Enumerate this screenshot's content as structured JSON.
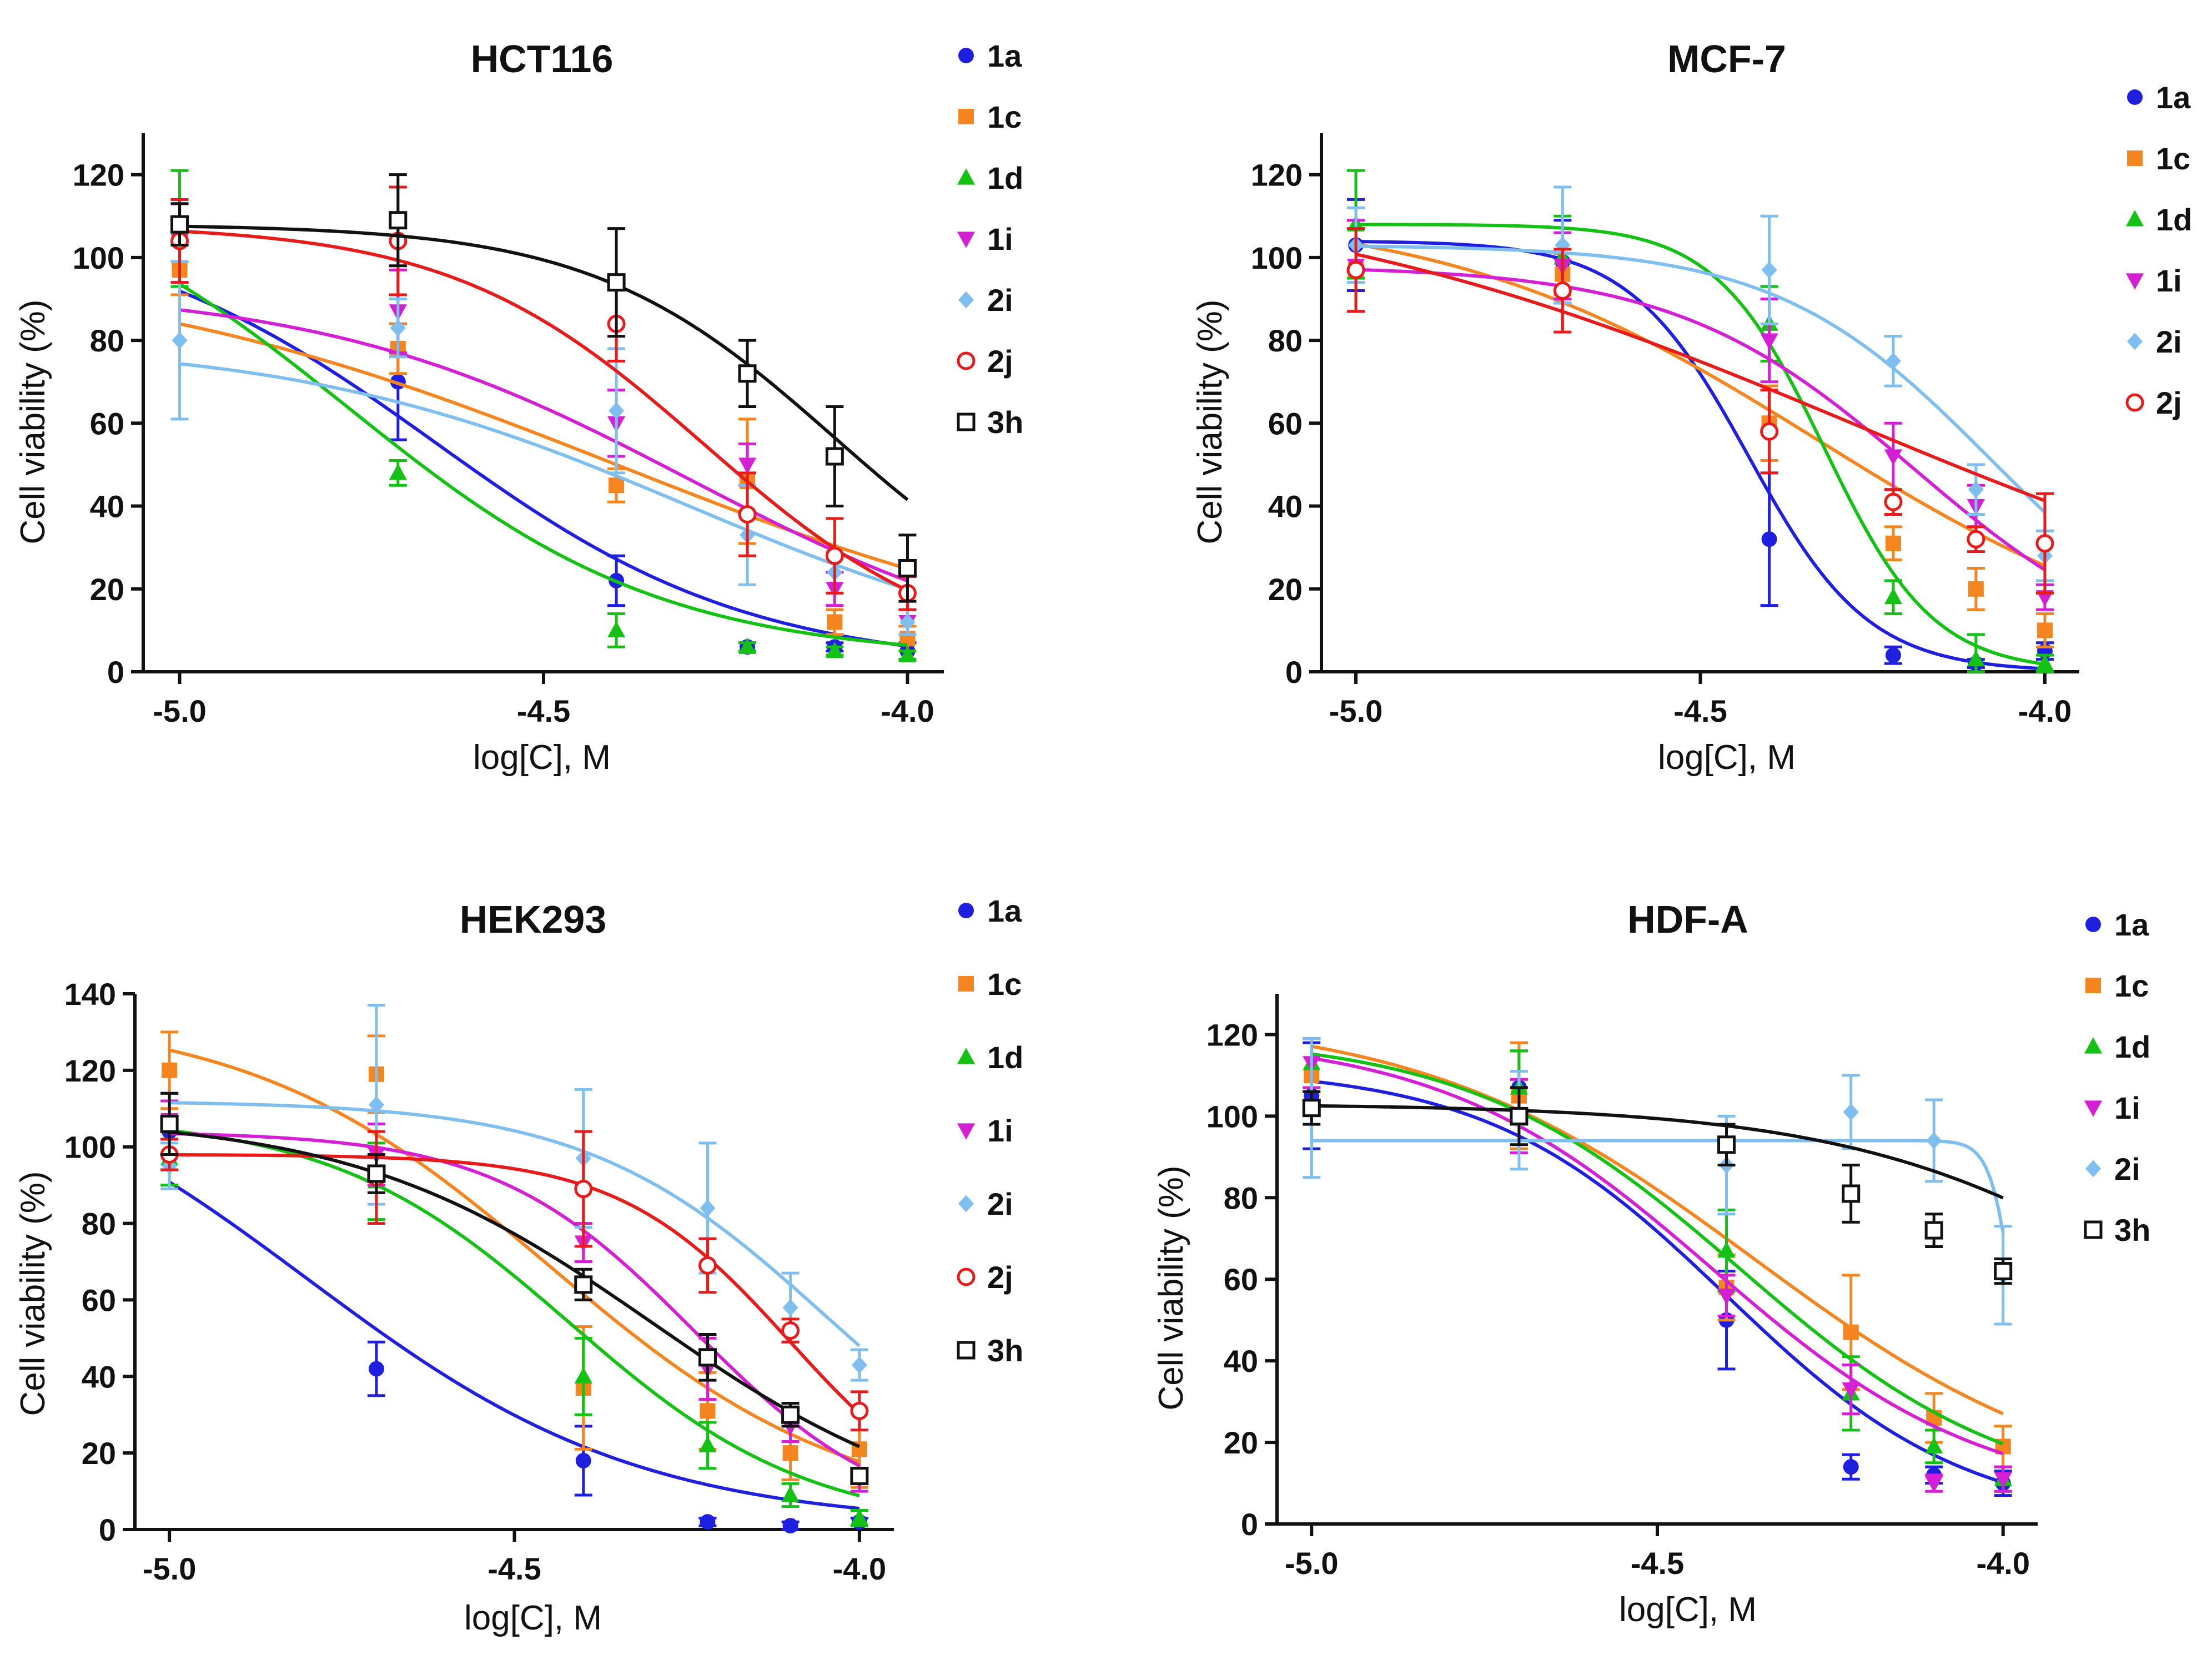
{
  "chart_data": [
    {
      "type": "line",
      "title": "HCT116",
      "xlabel": "log[C], M",
      "ylabel": "Cell viability (%)",
      "xlim": [
        -5.05,
        -3.95
      ],
      "ylim": [
        0,
        130
      ],
      "xticks": [
        "-5.0",
        "-4.5",
        "-4.0"
      ],
      "xtick_values": [
        -5.0,
        -4.5,
        -4.0
      ],
      "yticks": [
        0,
        20,
        40,
        60,
        80,
        100,
        120
      ],
      "legend_position": "right",
      "x": [
        -5.0,
        -4.7,
        -4.4,
        -4.22,
        -4.1,
        -4.0
      ],
      "series": [
        {
          "name": "1a",
          "color": "#1f1fe0",
          "marker": "circle",
          "values": [
            106,
            70,
            22,
            6,
            6,
            5
          ],
          "errors": [
            7,
            14,
            6,
            1,
            1,
            2
          ],
          "curve": {
            "top": 110,
            "bottom": 1,
            "logIC50": -4.65,
            "hill": 2.0
          }
        },
        {
          "name": "1c",
          "color": "#f5851f",
          "marker": "square",
          "values": [
            97,
            78,
            45,
            46,
            12,
            8
          ],
          "errors": [
            6,
            6,
            4,
            15,
            3,
            3
          ],
          "curve": {
            "top": 100,
            "bottom": 0,
            "logIC50": -4.4,
            "hill": 1.2
          }
        },
        {
          "name": "1d",
          "color": "#13c213",
          "marker": "triangle-up",
          "values": [
            107,
            48,
            10,
            6,
            5,
            4
          ],
          "errors": [
            14,
            3,
            4,
            1,
            1,
            1
          ],
          "curve": {
            "top": 125,
            "bottom": 3,
            "logIC50": -4.77,
            "hill": 2.0
          }
        },
        {
          "name": "1i",
          "color": "#d41fd4",
          "marker": "triangle-down",
          "values": [
            104,
            87,
            60,
            50,
            20,
            12
          ],
          "errors": [
            10,
            10,
            8,
            5,
            4,
            3
          ],
          "curve": {
            "top": 93,
            "bottom": 0,
            "logIC50": -4.3,
            "hill": 1.7
          }
        },
        {
          "name": "2i",
          "color": "#7fbfef",
          "marker": "diamond",
          "values": [
            80,
            83,
            63,
            33,
            24,
            12
          ],
          "errors": [
            19,
            7,
            15,
            12,
            5,
            3
          ],
          "curve": {
            "top": 80,
            "bottom": 0,
            "logIC50": -4.3,
            "hill": 1.6
          }
        },
        {
          "name": "2j",
          "color": "#e81b1b",
          "marker": "circle-open",
          "values": [
            104,
            104,
            84,
            38,
            28,
            19
          ],
          "errors": [
            10,
            13,
            9,
            10,
            9,
            4
          ],
          "curve": {
            "top": 108,
            "bottom": 2,
            "logIC50": -4.28,
            "hill": 2.5
          }
        },
        {
          "name": "3h",
          "color": "#111111",
          "marker": "square-open",
          "values": [
            108,
            109,
            94,
            72,
            52,
            25
          ],
          "errors": [
            5,
            11,
            13,
            8,
            12,
            8
          ],
          "curve": {
            "top": 108,
            "bottom": 5,
            "logIC50": -4.1,
            "hill": 2.6
          }
        }
      ]
    },
    {
      "type": "line",
      "title": "MCF-7",
      "xlabel": "log[C], M",
      "ylabel": "Cell viability (%)",
      "xlim": [
        -5.05,
        -3.95
      ],
      "ylim": [
        0,
        130
      ],
      "xticks": [
        "-5.0",
        "-4.5",
        "-4.0"
      ],
      "xtick_values": [
        -5.0,
        -4.5,
        -4.0
      ],
      "yticks": [
        0,
        20,
        40,
        60,
        80,
        100,
        120
      ],
      "legend_position": "right",
      "x": [
        -5.0,
        -4.7,
        -4.4,
        -4.22,
        -4.1,
        -4.0
      ],
      "series": [
        {
          "name": "1a",
          "color": "#1f1fe0",
          "marker": "circle",
          "values": [
            103,
            99,
            32,
            4,
            2,
            5
          ],
          "errors": [
            11,
            10,
            16,
            2,
            1,
            2
          ],
          "curve": {
            "top": 104,
            "bottom": 0,
            "logIC50": -4.43,
            "hill": 5.0
          }
        },
        {
          "name": "1c",
          "color": "#f5851f",
          "marker": "square",
          "values": [
            97,
            96,
            60,
            31,
            20,
            10
          ],
          "errors": [
            10,
            5,
            9,
            4,
            5,
            4
          ],
          "curve": {
            "top": 112,
            "bottom": 0,
            "logIC50": -4.33,
            "hill": 1.6
          }
        },
        {
          "name": "1d",
          "color": "#13c213",
          "marker": "triangle-up",
          "values": [
            108,
            100,
            84,
            18,
            3,
            2
          ],
          "errors": [
            13,
            10,
            9,
            4,
            6,
            2
          ],
          "curve": {
            "top": 108,
            "bottom": 0,
            "logIC50": -4.32,
            "hill": 5.5
          }
        },
        {
          "name": "1i",
          "color": "#d41fd4",
          "marker": "triangle-down",
          "values": [
            98,
            98,
            80,
            52,
            40,
            18
          ],
          "errors": [
            11,
            8,
            10,
            8,
            5,
            3
          ],
          "curve": {
            "top": 98,
            "bottom": 0,
            "logIC50": -4.19,
            "hill": 2.5
          }
        },
        {
          "name": "2i",
          "color": "#7fbfef",
          "marker": "diamond",
          "values": [
            103,
            103,
            97,
            75,
            44,
            28
          ],
          "errors": [
            9,
            14,
            13,
            6,
            6,
            6
          ],
          "curve": {
            "top": 103,
            "bottom": 0,
            "logIC50": -4.08,
            "hill": 2.8
          }
        },
        {
          "name": "2j",
          "color": "#e81b1b",
          "marker": "circle-open",
          "values": [
            97,
            92,
            58,
            41,
            32,
            31
          ],
          "errors": [
            10,
            10,
            10,
            3,
            3,
            12
          ],
          "curve": {
            "top": 120,
            "bottom": 0,
            "logIC50": -4.28,
            "hill": 1.0
          }
        }
      ]
    },
    {
      "type": "line",
      "title": "HEK293",
      "xlabel": "log[C], M",
      "ylabel": "Cell viability (%)",
      "xlim": [
        -5.05,
        -3.95
      ],
      "ylim": [
        0,
        140
      ],
      "xticks": [
        "-5.0",
        "-4.5",
        "-4.0"
      ],
      "xtick_values": [
        -5.0,
        -4.5,
        -4.0
      ],
      "yticks": [
        0,
        20,
        40,
        60,
        80,
        100,
        120,
        140
      ],
      "legend_position": "right",
      "x": [
        -5.0,
        -4.7,
        -4.4,
        -4.22,
        -4.1,
        -4.0
      ],
      "series": [
        {
          "name": "1a",
          "color": "#1f1fe0",
          "marker": "circle",
          "values": [
            104,
            42,
            18,
            2,
            1,
            2
          ],
          "errors": [
            10,
            7,
            9,
            1,
            1,
            1
          ],
          "curve": {
            "top": 130,
            "bottom": 1,
            "logIC50": -4.8,
            "hill": 1.8
          }
        },
        {
          "name": "1c",
          "color": "#f5851f",
          "marker": "square",
          "values": [
            120,
            119,
            37,
            31,
            20,
            21
          ],
          "errors": [
            10,
            10,
            16,
            10,
            7,
            10
          ],
          "curve": {
            "top": 135,
            "bottom": 3,
            "logIC50": -4.45,
            "hill": 2.0
          }
        },
        {
          "name": "1d",
          "color": "#13c213",
          "marker": "triangle-up",
          "values": [
            97,
            91,
            40,
            22,
            9,
            3
          ],
          "errors": [
            7,
            10,
            10,
            6,
            3,
            2
          ],
          "curve": {
            "top": 108,
            "bottom": 0,
            "logIC50": -4.42,
            "hill": 2.5
          }
        },
        {
          "name": "1i",
          "color": "#d41fd4",
          "marker": "triangle-down",
          "values": [
            107,
            98,
            75,
            42,
            27,
            13
          ],
          "errors": [
            5,
            8,
            5,
            8,
            4,
            3
          ],
          "curve": {
            "top": 104,
            "bottom": 0,
            "logIC50": -4.24,
            "hill": 3.0
          }
        },
        {
          "name": "2i",
          "color": "#7fbfef",
          "marker": "diamond",
          "values": [
            95,
            111,
            97,
            84,
            58,
            43
          ],
          "errors": [
            6,
            26,
            18,
            17,
            9,
            4
          ],
          "curve": {
            "top": 112,
            "bottom": 0,
            "logIC50": -4.05,
            "hill": 2.5
          }
        },
        {
          "name": "2j",
          "color": "#e81b1b",
          "marker": "circle-open",
          "values": [
            98,
            92,
            89,
            69,
            52,
            31
          ],
          "errors": [
            4,
            12,
            15,
            7,
            3,
            5
          ],
          "curve": {
            "top": 98,
            "bottom": 0,
            "logIC50": -4.1,
            "hill": 3.5
          }
        },
        {
          "name": "3h",
          "color": "#111111",
          "marker": "square-open",
          "values": [
            106,
            93,
            64,
            45,
            30,
            14
          ],
          "errors": [
            8,
            5,
            4,
            6,
            3,
            2
          ],
          "curve": {
            "top": 108,
            "bottom": 0,
            "logIC50": -4.3,
            "hill": 2.0
          }
        }
      ]
    },
    {
      "type": "line",
      "title": "HDF-A",
      "xlabel": "log[C], M",
      "ylabel": "Cell viability (%)",
      "xlim": [
        -5.05,
        -3.95
      ],
      "ylim": [
        0,
        130
      ],
      "xticks": [
        "-5.0",
        "-4.5",
        "-4.0"
      ],
      "xtick_values": [
        -5.0,
        -4.5,
        -4.0
      ],
      "yticks": [
        0,
        20,
        40,
        60,
        80,
        100,
        120
      ],
      "legend_position": "right",
      "x": [
        -5.0,
        -4.7,
        -4.4,
        -4.22,
        -4.1,
        -4.0
      ],
      "series": [
        {
          "name": "1a",
          "color": "#1f1fe0",
          "marker": "circle",
          "values": [
            105,
            107,
            50,
            14,
            12,
            10
          ],
          "errors": [
            13,
            9,
            12,
            3,
            2,
            3
          ],
          "curve": {
            "top": 112,
            "bottom": 0,
            "logIC50": -4.4,
            "hill": 2.5
          }
        },
        {
          "name": "1c",
          "color": "#f5851f",
          "marker": "square",
          "values": [
            110,
            105,
            58,
            47,
            26,
            19
          ],
          "errors": [
            9,
            13,
            8,
            14,
            6,
            5
          ],
          "curve": {
            "top": 125,
            "bottom": 5,
            "logIC50": -4.36,
            "hill": 1.8
          }
        },
        {
          "name": "1d",
          "color": "#13c213",
          "marker": "triangle-up",
          "values": [
            113,
            107,
            67,
            32,
            19,
            11
          ],
          "errors": [
            6,
            9,
            10,
            9,
            4,
            3
          ],
          "curve": {
            "top": 120,
            "bottom": 5,
            "logIC50": -4.38,
            "hill": 2.2
          }
        },
        {
          "name": "1i",
          "color": "#d41fd4",
          "marker": "triangle-down",
          "values": [
            113,
            100,
            56,
            33,
            10,
            11
          ],
          "errors": [
            6,
            9,
            5,
            6,
            2,
            3
          ],
          "curve": {
            "top": 120,
            "bottom": 5,
            "logIC50": -4.42,
            "hill": 2.2
          }
        },
        {
          "name": "2i",
          "color": "#7fbfef",
          "marker": "diamond",
          "values": [
            102,
            99,
            88,
            101,
            94,
            61
          ],
          "errors": [
            17,
            12,
            12,
            9,
            10,
            12
          ],
          "curve": {
            "top": 94,
            "bottom": 0,
            "logIC50": -3.98,
            "hill": 25
          }
        },
        {
          "name": "3h",
          "color": "#111111",
          "marker": "square-open",
          "values": [
            102,
            100,
            93,
            81,
            72,
            62
          ],
          "errors": [
            4,
            7,
            5,
            7,
            4,
            3
          ],
          "curve": {
            "top": 103,
            "bottom": 0,
            "logIC50": -3.7,
            "hill": 1.8
          }
        }
      ]
    }
  ]
}
